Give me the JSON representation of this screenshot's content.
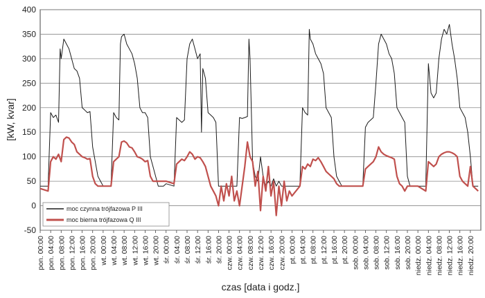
{
  "chart_data": {
    "type": "line",
    "title": "",
    "xlabel": "czas [data i godz.]",
    "ylabel": "[kW, kvar]",
    "ylim": [
      -50,
      400
    ],
    "yticks": [
      -50,
      0,
      50,
      100,
      150,
      200,
      250,
      300,
      350,
      400
    ],
    "grid": true,
    "legend_position": "bottom-left",
    "categories": [
      "pon. 00:00",
      "pon. 04:00",
      "pon. 08:00",
      "pon. 12:00",
      "pon. 16:00",
      "pon. 20:00",
      "wt. 00:00",
      "wt. 04:00",
      "wt. 08:00",
      "wt. 12:00",
      "wt. 16:00",
      "wt. 20:00",
      "śr. 00:00",
      "śr. 04:00",
      "śr. 08:00",
      "śr. 12:00",
      "śr. 16:00",
      "śr. 20:00",
      "czw. 00:00",
      "czw. 04:00",
      "czw. 08:00",
      "czw. 12:00",
      "czw. 16:00",
      "czw. 20:00",
      "pt. 00:00",
      "pt. 04:00",
      "pt. 08:00",
      "pt. 12:00",
      "pt. 16:00",
      "pt. 20:00",
      "sob. 00:00",
      "sob. 04:00",
      "sob. 08:00",
      "sob. 12:00",
      "sob. 16:00",
      "sob. 20:00",
      "niedz. 00:00",
      "niedz. 04:00",
      "niedz. 08:00",
      "niedz. 12:00",
      "niedz. 16:00",
      "niedz. 20:00"
    ],
    "series": [
      {
        "name": "moc czynna trójfazowa P III",
        "color": "#1a1a1a",
        "values": [
          [
            0,
            40
          ],
          [
            3,
            40
          ],
          [
            4,
            190
          ],
          [
            5,
            180
          ],
          [
            6,
            185
          ],
          [
            7,
            170
          ],
          [
            7.6,
            320
          ],
          [
            8,
            300
          ],
          [
            9,
            340
          ],
          [
            10,
            330
          ],
          [
            11,
            320
          ],
          [
            12,
            300
          ],
          [
            13,
            280
          ],
          [
            14,
            275
          ],
          [
            15,
            260
          ],
          [
            16,
            200
          ],
          [
            17,
            195
          ],
          [
            18,
            190
          ],
          [
            19,
            192
          ],
          [
            20,
            120
          ],
          [
            21,
            90
          ],
          [
            22,
            60
          ],
          [
            23,
            50
          ],
          [
            24,
            40
          ],
          [
            27,
            40
          ],
          [
            28,
            190
          ],
          [
            29,
            180
          ],
          [
            30,
            175
          ],
          [
            30.6,
            330
          ],
          [
            31,
            345
          ],
          [
            32,
            350
          ],
          [
            33,
            330
          ],
          [
            34,
            320
          ],
          [
            35,
            310
          ],
          [
            36,
            290
          ],
          [
            37,
            260
          ],
          [
            38,
            200
          ],
          [
            39,
            190
          ],
          [
            40,
            190
          ],
          [
            41,
            180
          ],
          [
            42,
            100
          ],
          [
            43,
            80
          ],
          [
            44,
            60
          ],
          [
            45,
            40
          ],
          [
            47,
            40
          ],
          [
            48,
            45
          ],
          [
            51,
            40
          ],
          [
            52,
            180
          ],
          [
            53,
            175
          ],
          [
            54,
            170
          ],
          [
            55,
            175
          ],
          [
            56,
            300
          ],
          [
            57,
            330
          ],
          [
            58,
            340
          ],
          [
            59,
            320
          ],
          [
            60,
            300
          ],
          [
            61,
            310
          ],
          [
            61.5,
            150
          ],
          [
            62,
            280
          ],
          [
            63,
            260
          ],
          [
            64,
            190
          ],
          [
            65,
            185
          ],
          [
            66,
            180
          ],
          [
            67,
            170
          ],
          [
            68,
            40
          ],
          [
            71,
            40
          ],
          [
            72,
            40
          ],
          [
            75,
            40
          ],
          [
            76,
            180
          ],
          [
            77,
            178
          ],
          [
            78,
            180
          ],
          [
            79,
            182
          ],
          [
            79.6,
            340
          ],
          [
            80,
            300
          ],
          [
            81,
            90
          ],
          [
            82,
            60
          ],
          [
            83,
            50
          ],
          [
            84,
            100
          ],
          [
            85,
            60
          ],
          [
            86,
            40
          ],
          [
            87,
            50
          ],
          [
            88,
            40
          ],
          [
            89,
            55
          ],
          [
            90,
            40
          ],
          [
            91,
            50
          ],
          [
            92,
            40
          ],
          [
            95,
            40
          ],
          [
            96,
            40
          ],
          [
            99,
            40
          ],
          [
            100,
            200
          ],
          [
            101,
            190
          ],
          [
            102,
            185
          ],
          [
            102.6,
            360
          ],
          [
            103,
            340
          ],
          [
            104,
            330
          ],
          [
            105,
            310
          ],
          [
            106,
            300
          ],
          [
            107,
            290
          ],
          [
            108,
            270
          ],
          [
            109,
            200
          ],
          [
            110,
            190
          ],
          [
            111,
            180
          ],
          [
            112,
            100
          ],
          [
            113,
            60
          ],
          [
            114,
            50
          ],
          [
            115,
            40
          ],
          [
            119,
            40
          ],
          [
            120,
            40
          ],
          [
            123,
            40
          ],
          [
            124,
            160
          ],
          [
            125,
            170
          ],
          [
            126,
            175
          ],
          [
            127,
            180
          ],
          [
            128,
            250
          ],
          [
            129,
            330
          ],
          [
            130,
            350
          ],
          [
            131,
            340
          ],
          [
            132,
            330
          ],
          [
            133,
            310
          ],
          [
            134,
            300
          ],
          [
            135,
            270
          ],
          [
            136,
            200
          ],
          [
            137,
            190
          ],
          [
            138,
            180
          ],
          [
            139,
            170
          ],
          [
            140,
            60
          ],
          [
            141,
            40
          ],
          [
            143,
            40
          ],
          [
            144,
            40
          ],
          [
            147,
            40
          ],
          [
            148,
            290
          ],
          [
            149,
            230
          ],
          [
            150,
            220
          ],
          [
            151,
            230
          ],
          [
            152,
            300
          ],
          [
            153,
            340
          ],
          [
            154,
            360
          ],
          [
            155,
            350
          ],
          [
            156,
            370
          ],
          [
            157,
            330
          ],
          [
            158,
            300
          ],
          [
            159,
            260
          ],
          [
            160,
            200
          ],
          [
            161,
            190
          ],
          [
            162,
            180
          ],
          [
            163,
            150
          ],
          [
            164,
            100
          ],
          [
            165,
            40
          ],
          [
            167,
            40
          ]
        ]
      },
      {
        "name": "moc bierna trójfazowa Q III",
        "color": "#c0504d",
        "values": [
          [
            0,
            35
          ],
          [
            3,
            30
          ],
          [
            4,
            90
          ],
          [
            5,
            100
          ],
          [
            6,
            95
          ],
          [
            7,
            105
          ],
          [
            8,
            90
          ],
          [
            9,
            135
          ],
          [
            10,
            140
          ],
          [
            11,
            138
          ],
          [
            12,
            130
          ],
          [
            13,
            125
          ],
          [
            14,
            110
          ],
          [
            15,
            105
          ],
          [
            16,
            100
          ],
          [
            17,
            98
          ],
          [
            18,
            95
          ],
          [
            19,
            96
          ],
          [
            20,
            60
          ],
          [
            21,
            45
          ],
          [
            22,
            40
          ],
          [
            23,
            40
          ],
          [
            24,
            40
          ],
          [
            27,
            40
          ],
          [
            28,
            90
          ],
          [
            29,
            95
          ],
          [
            30,
            100
          ],
          [
            31,
            130
          ],
          [
            32,
            132
          ],
          [
            33,
            128
          ],
          [
            34,
            120
          ],
          [
            35,
            118
          ],
          [
            36,
            110
          ],
          [
            37,
            100
          ],
          [
            38,
            98
          ],
          [
            39,
            95
          ],
          [
            40,
            90
          ],
          [
            41,
            92
          ],
          [
            42,
            60
          ],
          [
            43,
            50
          ],
          [
            44,
            50
          ],
          [
            45,
            50
          ],
          [
            47,
            50
          ],
          [
            48,
            50
          ],
          [
            51,
            45
          ],
          [
            52,
            85
          ],
          [
            53,
            90
          ],
          [
            54,
            95
          ],
          [
            55,
            92
          ],
          [
            56,
            100
          ],
          [
            57,
            110
          ],
          [
            58,
            105
          ],
          [
            59,
            95
          ],
          [
            60,
            100
          ],
          [
            61,
            98
          ],
          [
            62,
            90
          ],
          [
            63,
            80
          ],
          [
            64,
            60
          ],
          [
            65,
            40
          ],
          [
            66,
            30
          ],
          [
            67,
            20
          ],
          [
            68,
            0
          ],
          [
            69,
            40
          ],
          [
            70,
            10
          ],
          [
            71,
            45
          ],
          [
            72,
            20
          ],
          [
            73,
            60
          ],
          [
            74,
            10
          ],
          [
            75,
            30
          ],
          [
            76,
            0
          ],
          [
            77,
            40
          ],
          [
            78,
            80
          ],
          [
            79,
            130
          ],
          [
            80,
            100
          ],
          [
            81,
            90
          ],
          [
            82,
            40
          ],
          [
            83,
            70
          ],
          [
            84,
            -10
          ],
          [
            85,
            60
          ],
          [
            86,
            30
          ],
          [
            87,
            80
          ],
          [
            88,
            20
          ],
          [
            89,
            50
          ],
          [
            90,
            -20
          ],
          [
            91,
            40
          ],
          [
            92,
            0
          ],
          [
            93,
            50
          ],
          [
            94,
            10
          ],
          [
            95,
            30
          ],
          [
            96,
            20
          ],
          [
            99,
            40
          ],
          [
            100,
            80
          ],
          [
            101,
            75
          ],
          [
            102,
            85
          ],
          [
            103,
            80
          ],
          [
            104,
            95
          ],
          [
            105,
            92
          ],
          [
            106,
            98
          ],
          [
            107,
            90
          ],
          [
            108,
            80
          ],
          [
            109,
            70
          ],
          [
            110,
            65
          ],
          [
            111,
            60
          ],
          [
            112,
            55
          ],
          [
            113,
            45
          ],
          [
            114,
            40
          ],
          [
            115,
            40
          ],
          [
            119,
            40
          ],
          [
            120,
            40
          ],
          [
            123,
            40
          ],
          [
            124,
            75
          ],
          [
            125,
            80
          ],
          [
            126,
            85
          ],
          [
            127,
            90
          ],
          [
            128,
            100
          ],
          [
            129,
            120
          ],
          [
            130,
            110
          ],
          [
            131,
            105
          ],
          [
            132,
            102
          ],
          [
            133,
            100
          ],
          [
            134,
            98
          ],
          [
            135,
            95
          ],
          [
            136,
            60
          ],
          [
            137,
            45
          ],
          [
            138,
            40
          ],
          [
            139,
            30
          ],
          [
            140,
            40
          ],
          [
            141,
            40
          ],
          [
            143,
            40
          ],
          [
            144,
            40
          ],
          [
            147,
            30
          ],
          [
            148,
            90
          ],
          [
            149,
            85
          ],
          [
            150,
            80
          ],
          [
            151,
            85
          ],
          [
            152,
            100
          ],
          [
            153,
            105
          ],
          [
            154,
            108
          ],
          [
            155,
            110
          ],
          [
            156,
            110
          ],
          [
            157,
            108
          ],
          [
            158,
            105
          ],
          [
            159,
            100
          ],
          [
            160,
            60
          ],
          [
            161,
            50
          ],
          [
            162,
            45
          ],
          [
            163,
            40
          ],
          [
            164,
            80
          ],
          [
            165,
            40
          ],
          [
            167,
            30
          ]
        ]
      }
    ]
  }
}
